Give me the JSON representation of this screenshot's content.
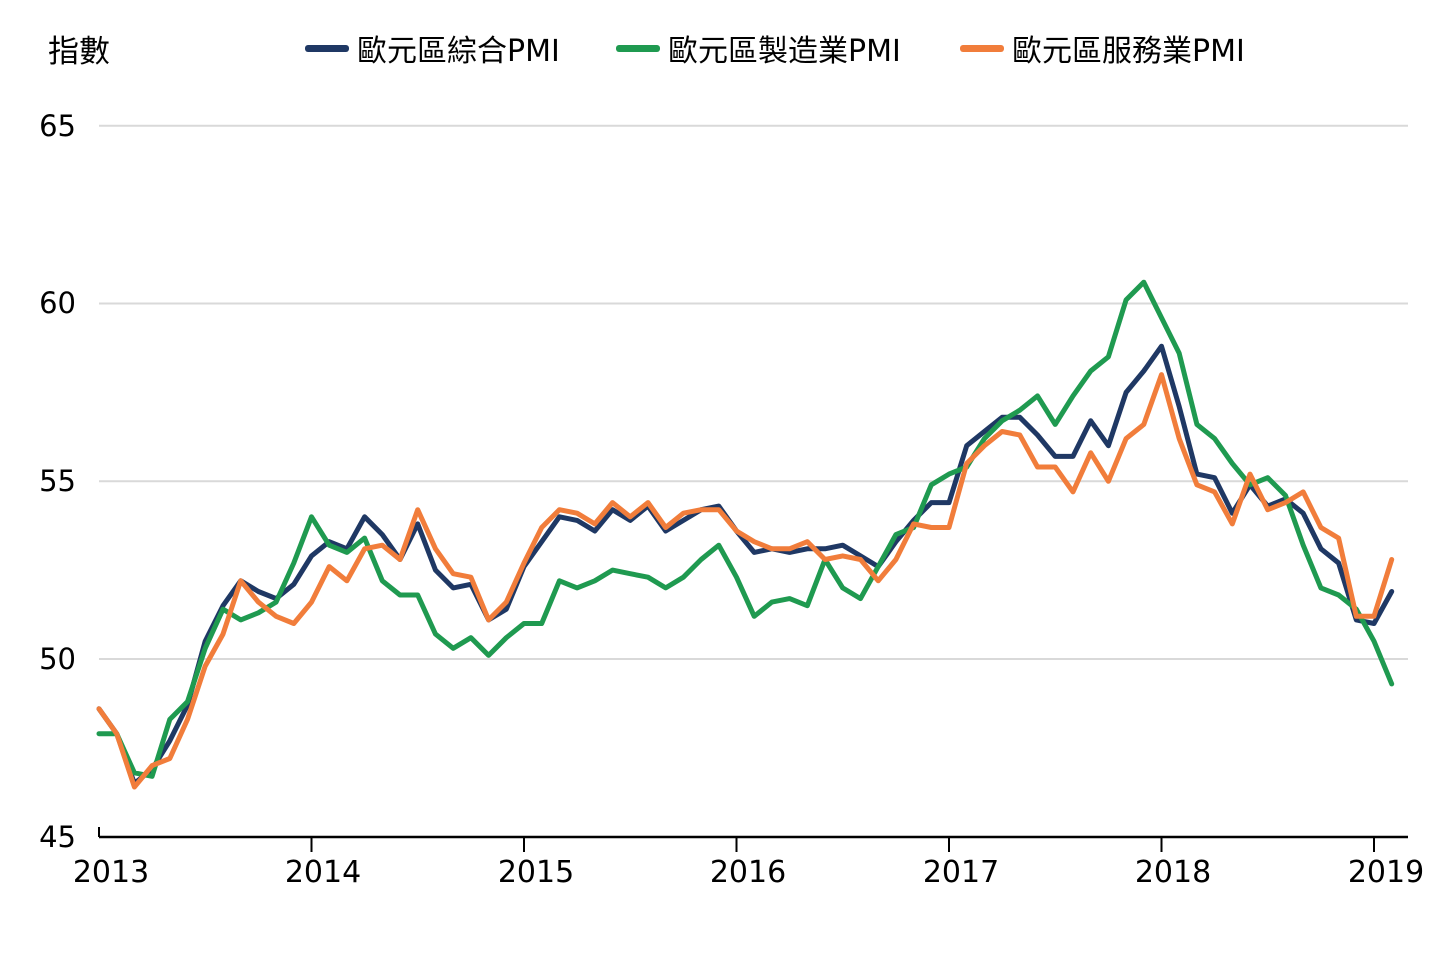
{
  "y_axis_title": "指數",
  "legend": {
    "items": [
      {
        "label": "歐元區綜合PMI",
        "color": "#1f3864"
      },
      {
        "label": "歐元區製造業PMI",
        "color": "#1f9a50"
      },
      {
        "label": "歐元區服務業PMI",
        "color": "#f17d3b"
      }
    ]
  },
  "axes": {
    "y": {
      "title": "指數",
      "ticks": [
        "65",
        "60",
        "55",
        "50",
        "45"
      ]
    },
    "x": {
      "ticks": [
        "2013",
        "2014",
        "2015",
        "2016",
        "2017",
        "2018",
        "2019"
      ]
    }
  },
  "chart_data": {
    "type": "line",
    "title": "",
    "ylabel": "指數",
    "ylim": [
      45,
      65
    ],
    "yticks": [
      65,
      60,
      55,
      50,
      45
    ],
    "x_frequency": "monthly",
    "x_start": "2013-01",
    "x_end": "2019-02",
    "x_tick_labels": [
      "2013",
      "2014",
      "2015",
      "2016",
      "2017",
      "2018",
      "2019"
    ],
    "grid": true,
    "legend_position": "top",
    "series": [
      {
        "name": "歐元區綜合PMI",
        "color": "#1f3864",
        "values": [
          48.6,
          47.9,
          46.5,
          46.9,
          47.7,
          48.7,
          50.5,
          51.5,
          52.2,
          51.9,
          51.7,
          52.1,
          52.9,
          53.3,
          53.1,
          54.0,
          53.5,
          52.8,
          53.8,
          52.5,
          52.0,
          52.1,
          51.1,
          51.4,
          52.6,
          53.3,
          54.0,
          53.9,
          53.6,
          54.2,
          53.9,
          54.3,
          53.6,
          53.9,
          54.2,
          54.3,
          53.6,
          53.0,
          53.1,
          53.0,
          53.1,
          53.1,
          53.2,
          52.9,
          52.6,
          53.3,
          53.9,
          54.4,
          54.4,
          56.0,
          56.4,
          56.8,
          56.8,
          56.3,
          55.7,
          55.7,
          56.7,
          56.0,
          57.5,
          58.1,
          58.8,
          57.1,
          55.2,
          55.1,
          54.1,
          54.9,
          54.3,
          54.5,
          54.1,
          53.1,
          52.7,
          51.1,
          51.0,
          51.9
        ]
      },
      {
        "name": "歐元區製造業PMI",
        "color": "#1f9a50",
        "values": [
          47.9,
          47.9,
          46.8,
          46.7,
          48.3,
          48.8,
          50.3,
          51.4,
          51.1,
          51.3,
          51.6,
          52.7,
          54.0,
          53.2,
          53.0,
          53.4,
          52.2,
          51.8,
          51.8,
          50.7,
          50.3,
          50.6,
          50.1,
          50.6,
          51.0,
          51.0,
          52.2,
          52.0,
          52.2,
          52.5,
          52.4,
          52.3,
          52.0,
          52.3,
          52.8,
          53.2,
          52.3,
          51.2,
          51.6,
          51.7,
          51.5,
          52.8,
          52.0,
          51.7,
          52.6,
          53.5,
          53.7,
          54.9,
          55.2,
          55.4,
          56.2,
          56.7,
          57.0,
          57.4,
          56.6,
          57.4,
          58.1,
          58.5,
          60.1,
          60.6,
          59.6,
          58.6,
          56.6,
          56.2,
          55.5,
          54.9,
          55.1,
          54.6,
          53.2,
          52.0,
          51.8,
          51.4,
          50.5,
          49.3
        ]
      },
      {
        "name": "歐元區服務業PMI",
        "color": "#f17d3b",
        "values": [
          48.6,
          47.9,
          46.4,
          47.0,
          47.2,
          48.3,
          49.8,
          50.7,
          52.2,
          51.6,
          51.2,
          51.0,
          51.6,
          52.6,
          52.2,
          53.1,
          53.2,
          52.8,
          54.2,
          53.1,
          52.4,
          52.3,
          51.1,
          51.6,
          52.7,
          53.7,
          54.2,
          54.1,
          53.8,
          54.4,
          54.0,
          54.4,
          53.7,
          54.1,
          54.2,
          54.2,
          53.6,
          53.3,
          53.1,
          53.1,
          53.3,
          52.8,
          52.9,
          52.8,
          52.2,
          52.8,
          53.8,
          53.7,
          53.7,
          55.5,
          56.0,
          56.4,
          56.3,
          55.4,
          55.4,
          54.7,
          55.8,
          55.0,
          56.2,
          56.6,
          58.0,
          56.2,
          54.9,
          54.7,
          53.8,
          55.2,
          54.2,
          54.4,
          54.7,
          53.7,
          53.4,
          51.2,
          51.2,
          52.8
        ]
      }
    ]
  }
}
